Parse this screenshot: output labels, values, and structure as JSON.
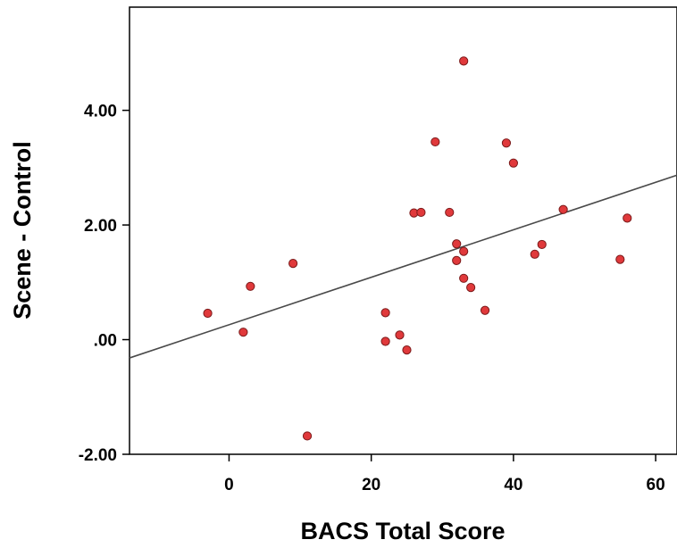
{
  "chart_data": {
    "type": "scatter",
    "title": "",
    "xlabel": "BACS Total Score",
    "ylabel": "Scene - Control",
    "xlim": [
      -14,
      63
    ],
    "ylim": [
      -2.0,
      5.8
    ],
    "x_ticks": [
      0,
      20,
      40,
      60
    ],
    "x_tick_labels": [
      "0",
      "20",
      "40",
      "60"
    ],
    "y_ticks": [
      -2,
      0,
      2,
      4
    ],
    "y_tick_labels": [
      "-2.00",
      ".00",
      "2.00",
      "4.00"
    ],
    "grid": false,
    "legend": "none",
    "point_color": "#e0393b",
    "point_edge_color": "#7a1a1a",
    "line_color": "#4a4a4a",
    "points": [
      {
        "x": -3,
        "y": 0.46
      },
      {
        "x": 2,
        "y": 0.13
      },
      {
        "x": 3,
        "y": 0.93
      },
      {
        "x": 9,
        "y": 1.33
      },
      {
        "x": 11,
        "y": -1.68
      },
      {
        "x": 22,
        "y": 0.47
      },
      {
        "x": 22,
        "y": -0.03
      },
      {
        "x": 24,
        "y": 0.08
      },
      {
        "x": 25,
        "y": -0.18
      },
      {
        "x": 26,
        "y": 2.21
      },
      {
        "x": 27,
        "y": 2.22
      },
      {
        "x": 29,
        "y": 3.45
      },
      {
        "x": 31,
        "y": 2.22
      },
      {
        "x": 32,
        "y": 1.67
      },
      {
        "x": 32,
        "y": 1.38
      },
      {
        "x": 33,
        "y": 4.86
      },
      {
        "x": 33,
        "y": 1.54
      },
      {
        "x": 33,
        "y": 1.07
      },
      {
        "x": 34,
        "y": 0.91
      },
      {
        "x": 36,
        "y": 0.51
      },
      {
        "x": 39,
        "y": 3.43
      },
      {
        "x": 40,
        "y": 3.08
      },
      {
        "x": 43,
        "y": 1.49
      },
      {
        "x": 44,
        "y": 1.66
      },
      {
        "x": 47,
        "y": 2.27
      },
      {
        "x": 55,
        "y": 1.4
      },
      {
        "x": 56,
        "y": 2.12
      }
    ],
    "fit_line": {
      "intercept": 0.26,
      "slope": 0.0414
    }
  }
}
